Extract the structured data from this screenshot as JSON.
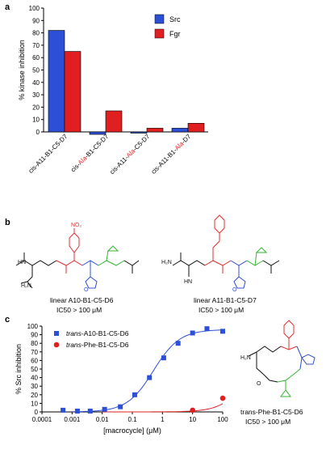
{
  "panel_a": {
    "label": "a"
  },
  "panel_b": {
    "label": "b",
    "compound1": {
      "name": "linear A10-B1-C5-D6",
      "ic50": "IC50 > 100 μM"
    },
    "compound2": {
      "name": "linear A11-B1-C5-D7",
      "ic50": "IC50 > 100 μM"
    }
  },
  "panel_c": {
    "label": "c",
    "compound": {
      "name": "trans-Phe-B1-C5-D6",
      "ic50": "IC50 > 100 μM"
    }
  },
  "colors": {
    "src": "#2d4fd6",
    "fgr": "#e02020",
    "red_motif": "#e03030",
    "blue_motif": "#3050d0",
    "green_motif": "#33b533",
    "black": "#111111"
  },
  "chart_data": [
    {
      "type": "bar",
      "ylabel": "% kinase inhibition",
      "ylim": [
        0,
        100
      ],
      "yticks": [
        "0",
        "10",
        "20",
        "30",
        "40",
        "50",
        "60",
        "70",
        "80",
        "90",
        "100"
      ],
      "categories": [
        "cis-A11-B1-C5-D7",
        "cis-Ala-B1-C5-D7",
        "cis-A11-Ala-C5-D7",
        "cis-A11-B1-Ala-D7"
      ],
      "series": [
        {
          "name": "Src",
          "values": [
            82,
            -2,
            -1,
            3
          ]
        },
        {
          "name": "Fgr",
          "values": [
            65,
            17,
            3,
            7
          ]
        }
      ],
      "legend": "top-right",
      "grid": false
    },
    {
      "type": "scatter",
      "xscale": "log",
      "xlabel": "[macrocycle] (μM)",
      "ylabel": "% Src inhibition",
      "xlim": [
        0.0001,
        100
      ],
      "ylim": [
        0,
        100
      ],
      "xticks": [
        "0.0001",
        "0.001",
        "0.01",
        "0.1",
        "1",
        "10",
        "100"
      ],
      "yticks": [
        "0",
        "10",
        "20",
        "30",
        "40",
        "50",
        "60",
        "70",
        "80",
        "90",
        "100"
      ],
      "series": [
        {
          "name": "trans-A10-B1-C5-D6",
          "x": [
            0.0005,
            0.0015,
            0.004,
            0.012,
            0.04,
            0.12,
            0.37,
            1.1,
            3.3,
            10,
            30,
            100
          ],
          "y": [
            2,
            1,
            1,
            3,
            6,
            20,
            40,
            63,
            80,
            92,
            97,
            94
          ]
        },
        {
          "name": "trans-Phe-B1-C5-D6",
          "x": [
            10,
            100
          ],
          "y": [
            2,
            16
          ]
        }
      ],
      "legend": "top-left",
      "grid": false
    }
  ]
}
